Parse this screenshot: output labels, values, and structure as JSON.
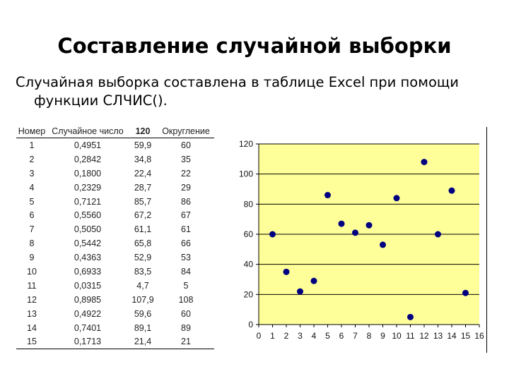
{
  "slide": {
    "title": "Составление случайной выборки",
    "body_line1": "Случайная выборка составлена в таблице Excel при помощи",
    "body_line2": "функции СЛЧИС()."
  },
  "table": {
    "headers": [
      "Номер",
      "Случайное число",
      "120",
      "Округление"
    ],
    "rows": [
      [
        "1",
        "0,4951",
        "59,9",
        "60"
      ],
      [
        "2",
        "0,2842",
        "34,8",
        "35"
      ],
      [
        "3",
        "0,1800",
        "22,4",
        "22"
      ],
      [
        "4",
        "0,2329",
        "28,7",
        "29"
      ],
      [
        "5",
        "0,7121",
        "85,7",
        "86"
      ],
      [
        "6",
        "0,5560",
        "67,2",
        "67"
      ],
      [
        "7",
        "0,5050",
        "61,1",
        "61"
      ],
      [
        "8",
        "0,5442",
        "65,8",
        "66"
      ],
      [
        "9",
        "0,4363",
        "52,9",
        "53"
      ],
      [
        "10",
        "0,6933",
        "83,5",
        "84"
      ],
      [
        "11",
        "0,0315",
        "4,7",
        "5"
      ],
      [
        "12",
        "0,8985",
        "107,9",
        "108"
      ],
      [
        "13",
        "0,4922",
        "59,6",
        "60"
      ],
      [
        "14",
        "0,7401",
        "89,1",
        "89"
      ],
      [
        "15",
        "0,1713",
        "21,4",
        "21"
      ]
    ]
  },
  "chart_data": {
    "type": "scatter",
    "x": [
      1,
      2,
      3,
      4,
      5,
      6,
      7,
      8,
      9,
      10,
      11,
      12,
      13,
      14,
      15
    ],
    "y": [
      60,
      35,
      22,
      29,
      86,
      67,
      61,
      66,
      53,
      84,
      5,
      108,
      60,
      89,
      21
    ],
    "xlim": [
      0,
      16
    ],
    "ylim": [
      0,
      120
    ],
    "x_ticks": [
      "0",
      "1",
      "2",
      "3",
      "4",
      "5",
      "6",
      "7",
      "8",
      "9",
      "10",
      "11",
      "12",
      "13",
      "14",
      "15",
      "16"
    ],
    "y_ticks": [
      "0",
      "20",
      "40",
      "60",
      "80",
      "100",
      "120"
    ],
    "grid": "horizontal",
    "colors": {
      "plot_background": "#FFFF99",
      "point": "#000080",
      "grid": "#000000"
    }
  }
}
